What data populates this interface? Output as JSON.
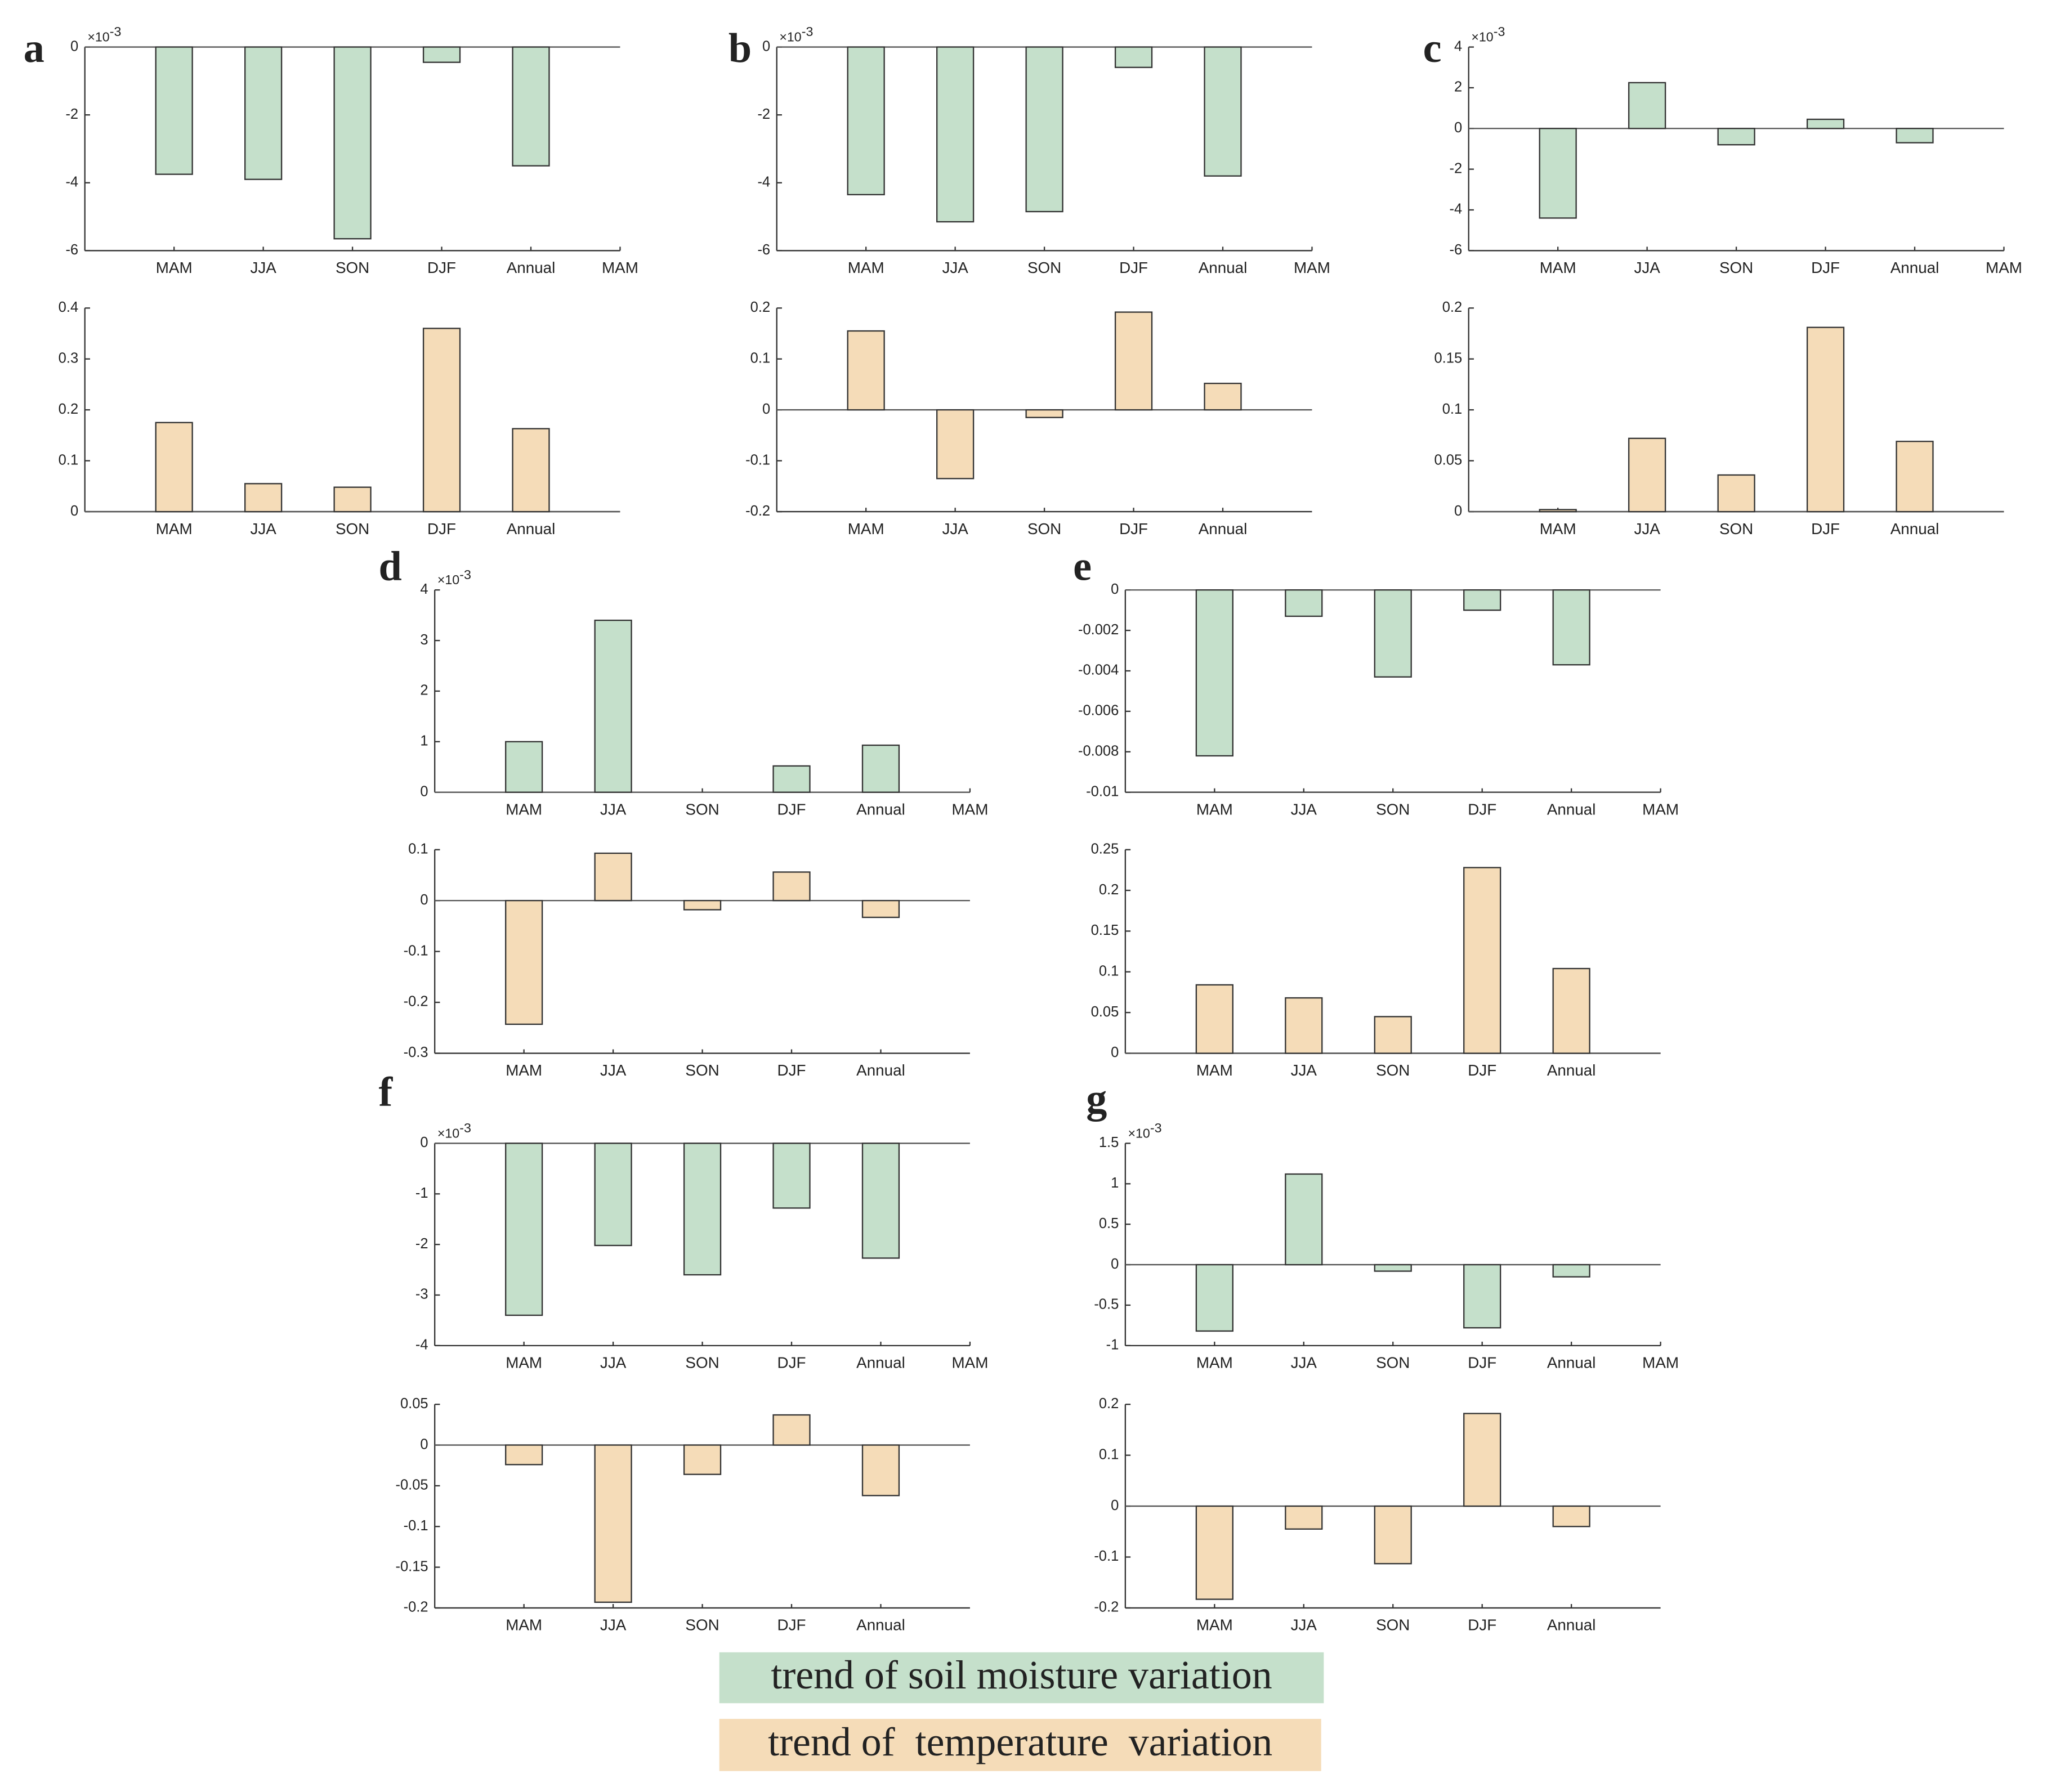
{
  "chart_data": [
    {
      "type": "bar",
      "panel": "a",
      "series_name": "soil",
      "y_exponent": {
        "base": "×10",
        "power": -3
      },
      "categories": [
        "MAM",
        "JJA",
        "SON",
        "DJF",
        "Annual",
        "MAM"
      ],
      "values": [
        -3.75,
        -3.9,
        -5.65,
        -0.45,
        -3.5,
        null
      ],
      "color": "#c5e0cb",
      "ylim": [
        -6,
        0
      ],
      "yticks": [
        -6,
        -4,
        -2,
        0
      ]
    },
    {
      "type": "bar",
      "series_name": "temp",
      "categories": [
        "MAM",
        "JJA",
        "SON",
        "DJF",
        "Annual"
      ],
      "values": [
        0.175,
        0.055,
        0.048,
        0.36,
        0.163
      ],
      "color": "#f5dcb8",
      "ylim": [
        0,
        0.4
      ],
      "yticks": [
        0,
        0.1,
        0.2,
        0.3,
        0.4
      ]
    },
    {
      "type": "bar",
      "panel": "b",
      "series_name": "soil",
      "y_exponent": {
        "base": "×10",
        "power": -3
      },
      "categories": [
        "MAM",
        "JJA",
        "SON",
        "DJF",
        "Annual",
        "MAM"
      ],
      "values": [
        -4.35,
        -5.15,
        -4.85,
        -0.6,
        -3.8,
        null
      ],
      "color": "#c5e0cb",
      "ylim": [
        -6,
        0
      ],
      "yticks": [
        -6,
        -4,
        -2,
        0
      ]
    },
    {
      "type": "bar",
      "series_name": "temp",
      "categories": [
        "MAM",
        "JJA",
        "SON",
        "DJF",
        "Annual"
      ],
      "values": [
        0.155,
        -0.135,
        -0.015,
        0.192,
        0.052
      ],
      "color": "#f5dcb8",
      "ylim": [
        -0.2,
        0.2
      ],
      "yticks": [
        -0.2,
        -0.1,
        0,
        0.1,
        0.2
      ]
    },
    {
      "type": "bar",
      "panel": "c",
      "series_name": "soil",
      "y_exponent": {
        "base": "×10",
        "power": -3
      },
      "categories": [
        "MAM",
        "JJA",
        "SON",
        "DJF",
        "Annual",
        "MAM"
      ],
      "values": [
        -4.4,
        2.25,
        -0.8,
        0.45,
        -0.7,
        null
      ],
      "color": "#c5e0cb",
      "ylim": [
        -6,
        4
      ],
      "yticks": [
        -6,
        -4,
        -2,
        0,
        2,
        4
      ]
    },
    {
      "type": "bar",
      "series_name": "temp",
      "categories": [
        "MAM",
        "JJA",
        "SON",
        "DJF",
        "Annual"
      ],
      "values": [
        0.002,
        0.072,
        0.036,
        0.181,
        0.069
      ],
      "color": "#f5dcb8",
      "ylim": [
        0,
        0.2
      ],
      "yticks": [
        0,
        0.05,
        0.1,
        0.15,
        0.2
      ]
    },
    {
      "type": "bar",
      "panel": "d",
      "series_name": "soil",
      "y_exponent": {
        "base": "×10",
        "power": -3
      },
      "categories": [
        "MAM",
        "JJA",
        "SON",
        "DJF",
        "Annual",
        "MAM"
      ],
      "values": [
        1.0,
        3.4,
        0,
        0.52,
        0.93,
        null
      ],
      "color": "#c5e0cb",
      "ylim": [
        0,
        4
      ],
      "yticks": [
        0,
        1,
        2,
        3,
        4
      ]
    },
    {
      "type": "bar",
      "series_name": "temp",
      "categories": [
        "MAM",
        "JJA",
        "SON",
        "DJF",
        "Annual"
      ],
      "values": [
        -0.243,
        0.093,
        -0.018,
        0.056,
        -0.033
      ],
      "color": "#f5dcb8",
      "ylim": [
        -0.3,
        0.1
      ],
      "yticks": [
        -0.3,
        -0.2,
        -0.1,
        0,
        0.1
      ]
    },
    {
      "type": "bar",
      "panel": "e",
      "series_name": "soil",
      "categories": [
        "MAM",
        "JJA",
        "SON",
        "DJF",
        "Annual",
        "MAM"
      ],
      "values": [
        -0.0082,
        -0.0013,
        -0.0043,
        -0.001,
        -0.0037,
        null
      ],
      "color": "#c5e0cb",
      "ylim": [
        -0.01,
        0
      ],
      "yticks": [
        -0.01,
        -0.008,
        -0.006,
        -0.004,
        -0.002,
        0
      ]
    },
    {
      "type": "bar",
      "series_name": "temp",
      "categories": [
        "MAM",
        "JJA",
        "SON",
        "DJF",
        "Annual"
      ],
      "values": [
        0.084,
        0.068,
        0.045,
        0.228,
        0.104
      ],
      "color": "#f5dcb8",
      "ylim": [
        0,
        0.25
      ],
      "yticks": [
        0,
        0.05,
        0.1,
        0.15,
        0.2,
        0.25
      ]
    },
    {
      "type": "bar",
      "panel": "f",
      "series_name": "soil",
      "y_exponent": {
        "base": "×10",
        "power": -3
      },
      "categories": [
        "MAM",
        "JJA",
        "SON",
        "DJF",
        "Annual",
        "MAM"
      ],
      "values": [
        -3.4,
        -2.02,
        -2.6,
        -1.28,
        -2.27,
        null
      ],
      "color": "#c5e0cb",
      "ylim": [
        -4,
        0
      ],
      "yticks": [
        -4,
        -3,
        -2,
        -1,
        0
      ]
    },
    {
      "type": "bar",
      "series_name": "temp",
      "categories": [
        "MAM",
        "JJA",
        "SON",
        "DJF",
        "Annual"
      ],
      "values": [
        -0.024,
        -0.193,
        -0.036,
        0.037,
        -0.062
      ],
      "color": "#f5dcb8",
      "ylim": [
        -0.2,
        0.05
      ],
      "yticks": [
        -0.2,
        -0.15,
        -0.1,
        -0.05,
        0,
        0.05
      ]
    },
    {
      "type": "bar",
      "panel": "g",
      "series_name": "soil",
      "y_exponent": {
        "base": "×10",
        "power": -3
      },
      "categories": [
        "MAM",
        "JJA",
        "SON",
        "DJF",
        "Annual",
        "MAM"
      ],
      "values": [
        -0.82,
        1.12,
        -0.08,
        -0.78,
        -0.15,
        null
      ],
      "color": "#c5e0cb",
      "ylim": [
        -1,
        1.5
      ],
      "yticks": [
        -1,
        -0.5,
        0,
        0.5,
        1,
        1.5
      ]
    },
    {
      "type": "bar",
      "series_name": "temp",
      "categories": [
        "MAM",
        "JJA",
        "SON",
        "DJF",
        "Annual"
      ],
      "values": [
        -0.183,
        -0.045,
        -0.113,
        0.182,
        -0.04
      ],
      "color": "#f5dcb8",
      "ylim": [
        -0.2,
        0.2
      ],
      "yticks": [
        -0.2,
        -0.1,
        0,
        0.1,
        0.2
      ]
    }
  ],
  "legend": [
    {
      "label": "trend of soil moisture variation",
      "color": "#c5e0cb"
    },
    {
      "label": "trend of  temperature  variation",
      "color": "#f5dcb8"
    }
  ]
}
